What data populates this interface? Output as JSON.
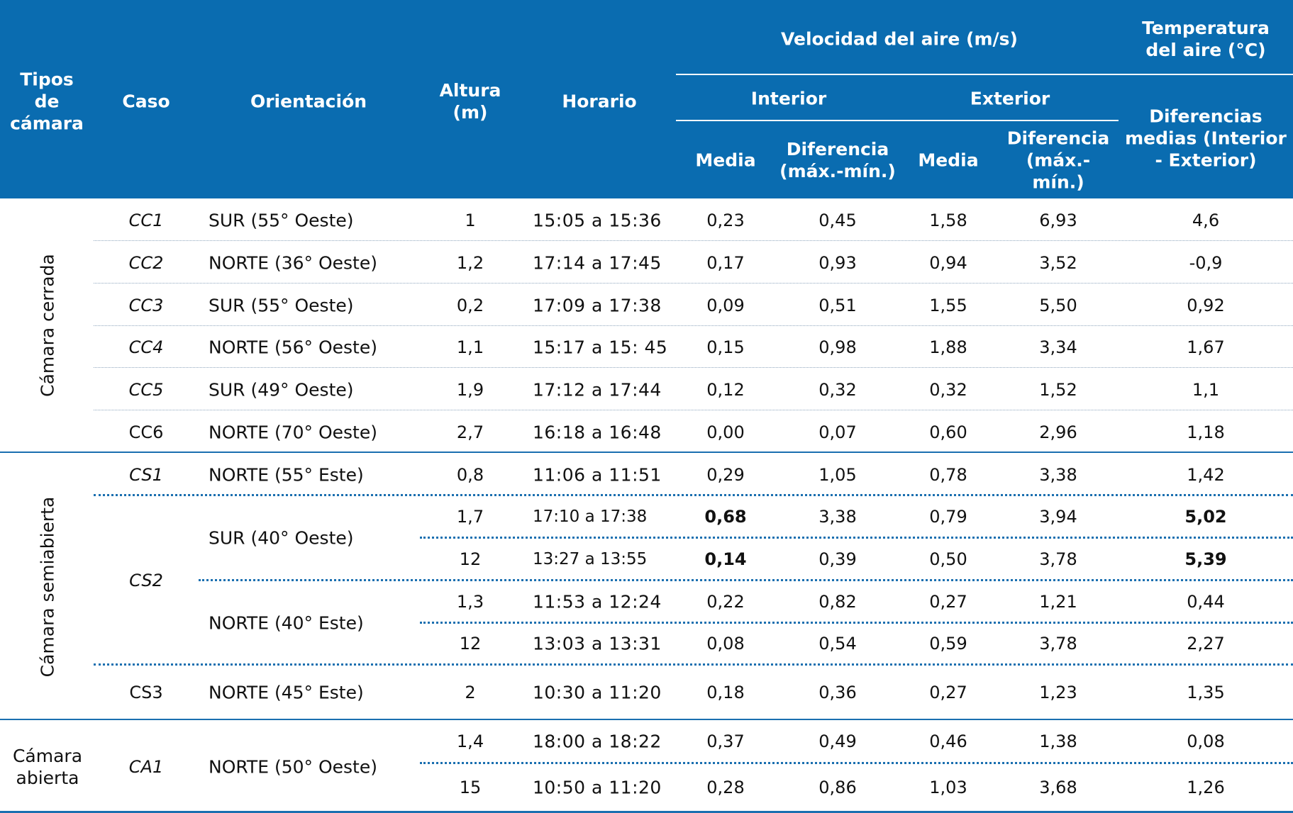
{
  "header": {
    "tipos": "Tipos\nde\ncámara",
    "caso": "Caso",
    "orientacion": "Orientación",
    "altura": "Altura\n(m)",
    "horario": "Horario",
    "velocidad": "Velocidad del aire (m/s)",
    "temperatura": "Temperatura\ndel aire (°C)",
    "interior": "Interior",
    "exterior": "Exterior",
    "media_int": "Media",
    "dif_int": "Diferencia\n(máx.-mín.)",
    "media_ext": "Media",
    "dif_ext": "Diferencia\n(máx.-\nmín.)",
    "dif_temp": "Diferencias\nmedias (Interior\n- Exterior)"
  },
  "groups": {
    "cerrada": "Cámara cerrada",
    "semiabierta": "Cámara semiabierta",
    "abierta": "Cámara\nabierta"
  },
  "rows": [
    {
      "caso": "CC1",
      "orient": "SUR (55° Oeste)",
      "altura": "1",
      "horario": "15:05 a 15:36",
      "mi": "0,23",
      "di": "0,45",
      "me": "1,58",
      "de": "6,93",
      "dt": "4,6"
    },
    {
      "caso": "CC2",
      "orient": "NORTE (36° Oeste)",
      "altura": "1,2",
      "horario": "17:14 a 17:45",
      "mi": "0,17",
      "di": "0,93",
      "me": "0,94",
      "de": "3,52",
      "dt": "-0,9"
    },
    {
      "caso": "CC3",
      "orient": "SUR (55° Oeste)",
      "altura": "0,2",
      "horario": "17:09 a 17:38",
      "mi": "0,09",
      "di": "0,51",
      "me": "1,55",
      "de": "5,50",
      "dt": "0,92"
    },
    {
      "caso": "CC4",
      "orient": "NORTE (56° Oeste)",
      "altura": "1,1",
      "horario": "15:17 a 15: 45",
      "mi": "0,15",
      "di": "0,98",
      "me": "1,88",
      "de": "3,34",
      "dt": "1,67"
    },
    {
      "caso": "CC5",
      "orient": "SUR (49° Oeste)",
      "altura": "1,9",
      "horario": "17:12 a 17:44",
      "mi": "0,12",
      "di": "0,32",
      "me": "0,32",
      "de": "1,52",
      "dt": "1,1"
    },
    {
      "caso": "CC6",
      "orient": "NORTE (70° Oeste)",
      "altura": "2,7",
      "horario": "16:18 a 16:48",
      "mi": "0,00",
      "di": "0,07",
      "me": "0,60",
      "de": "2,96",
      "dt": "1,18"
    },
    {
      "caso": "CS1",
      "orient": "NORTE (55° Este)",
      "altura": "0,8",
      "horario": "11:06 a 11:51",
      "mi": "0,29",
      "di": "1,05",
      "me": "0,78",
      "de": "3,38",
      "dt": "1,42"
    },
    {
      "caso": "CS2",
      "orient": "SUR (40° Oeste)",
      "altura": "1,7",
      "horario": "17:10 a 17:38",
      "mi": "0,68",
      "di": "3,38",
      "me": "0,79",
      "de": "3,94",
      "dt": "5,02"
    },
    {
      "altura": "12",
      "horario": "13:27 a 13:55",
      "mi": "0,14",
      "di": "0,39",
      "me": "0,50",
      "de": "3,78",
      "dt": "5,39"
    },
    {
      "orient": "NORTE (40° Este)",
      "altura": "1,3",
      "horario": "11:53 a 12:24",
      "mi": "0,22",
      "di": "0,82",
      "me": "0,27",
      "de": "1,21",
      "dt": "0,44"
    },
    {
      "altura": "12",
      "horario": "13:03 a 13:31",
      "mi": "0,08",
      "di": "0,54",
      "me": "0,59",
      "de": "3,78",
      "dt": "2,27"
    },
    {
      "caso": "CS3",
      "orient": "NORTE (45° Este)",
      "altura": "2",
      "horario": "10:30 a 11:20",
      "mi": "0,18",
      "di": "0,36",
      "me": "0,27",
      "de": "1,23",
      "dt": "1,35"
    },
    {
      "caso": "CA1",
      "orient": "NORTE (50° Oeste)",
      "altura": "1,4",
      "horario": "18:00 a 18:22",
      "mi": "0,37",
      "di": "0,49",
      "me": "0,46",
      "de": "1,38",
      "dt": "0,08"
    },
    {
      "altura": "15",
      "horario": "10:50 a 11:20",
      "mi": "0,28",
      "di": "0,86",
      "me": "1,03",
      "de": "3,68",
      "dt": "1,26"
    }
  ]
}
